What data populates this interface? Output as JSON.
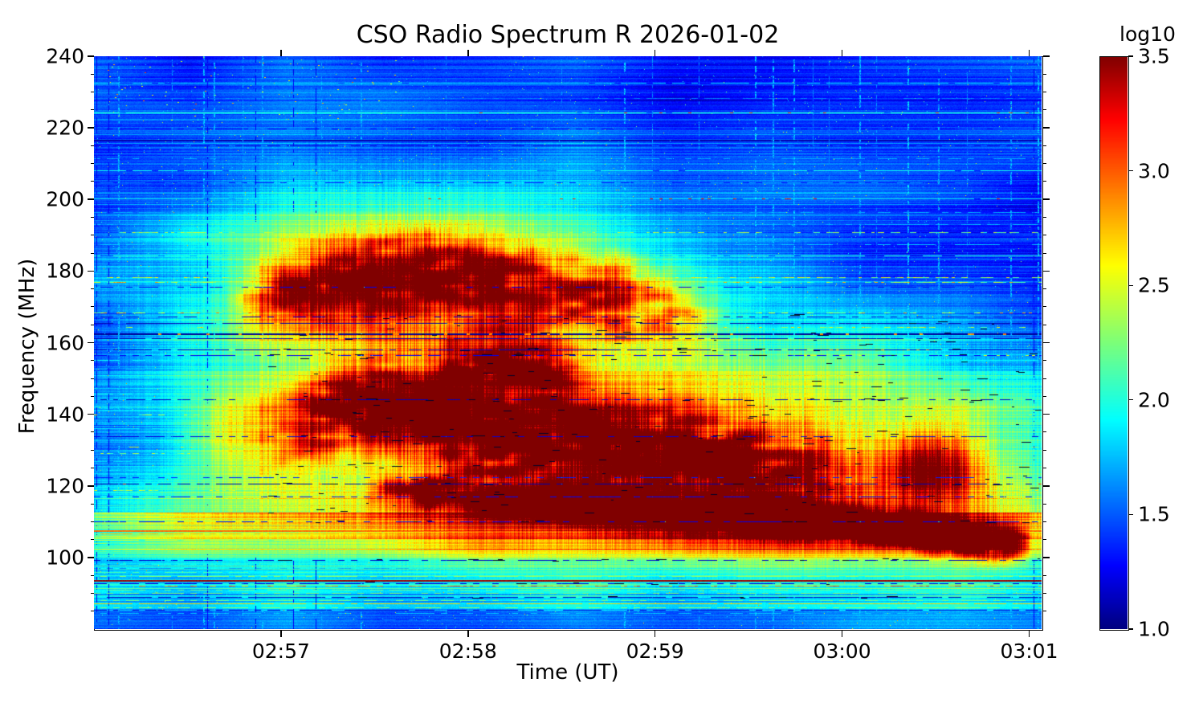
{
  "figure": {
    "background": "#ffffff"
  },
  "chart_data": {
    "type": "heatmap",
    "title": "CSO Radio Spectrum R 2026-01-02",
    "xlabel": "Time (UT)",
    "ylabel": "Frequency (MHz)",
    "colorbar_label": "log10",
    "value_range": [
      1.0,
      3.5
    ],
    "freq_range_mhz": [
      80,
      240
    ],
    "time_range": [
      "02:56:00",
      "03:01:04"
    ],
    "time_span_seconds": 304,
    "x_ticks": [
      {
        "label": "02:57",
        "t": 60
      },
      {
        "label": "02:58",
        "t": 120
      },
      {
        "label": "02:59",
        "t": 180
      },
      {
        "label": "03:00",
        "t": 240
      },
      {
        "label": "03:01",
        "t": 300
      }
    ],
    "y_ticks": [
      {
        "label": "240",
        "f": 240
      },
      {
        "label": "220",
        "f": 220
      },
      {
        "label": "200",
        "f": 200
      },
      {
        "label": "180",
        "f": 180
      },
      {
        "label": "160",
        "f": 160
      },
      {
        "label": "140",
        "f": 140
      },
      {
        "label": "120",
        "f": 120
      },
      {
        "label": "100",
        "f": 100
      }
    ],
    "y_minor_step": 5,
    "colorbar_ticks": [
      {
        "label": "3.5",
        "v": 3.5
      },
      {
        "label": "3.0",
        "v": 3.0
      },
      {
        "label": "2.5",
        "v": 2.5
      },
      {
        "label": "2.0",
        "v": 2.0
      },
      {
        "label": "1.5",
        "v": 1.5
      },
      {
        "label": "1.0",
        "v": 1.0
      }
    ],
    "colormap": {
      "name": "jet",
      "stops": [
        [
          0.0,
          [
            0,
            0,
            128
          ]
        ],
        [
          0.11,
          [
            0,
            0,
            255
          ]
        ],
        [
          0.365,
          [
            0,
            255,
            255
          ]
        ],
        [
          0.5,
          [
            124,
            255,
            121
          ]
        ],
        [
          0.635,
          [
            255,
            255,
            0
          ]
        ],
        [
          0.89,
          [
            255,
            0,
            0
          ]
        ],
        [
          1.0,
          [
            128,
            0,
            0
          ]
        ]
      ]
    },
    "seed": 1234,
    "background_level": 1.38,
    "texture": {
      "row_noise": 0.11,
      "col_noise": 0.16,
      "grain": 0.05,
      "patch": 0.6
    },
    "zones": [
      {
        "f0": 100,
        "f1": 112.5,
        "a": 0.5
      },
      {
        "f0": 85,
        "f1": 100,
        "a": 0.32
      },
      {
        "f0": 80,
        "f1": 85,
        "a": 0.12
      },
      {
        "f0": 137,
        "f1": 152,
        "a": 0.1
      },
      {
        "f0": 112.5,
        "f1": 122,
        "a": 0.06
      },
      {
        "f0": 186,
        "f1": 196,
        "a": 0.06
      }
    ],
    "envelope_blobs": [
      {
        "t": 95,
        "f": 168,
        "st": 52,
        "sf": 26,
        "amp": 0.72
      },
      {
        "t": 108,
        "f": 186,
        "st": 40,
        "sf": 13,
        "amp": 0.5
      },
      {
        "t": 140,
        "f": 150,
        "st": 70,
        "sf": 28,
        "amp": 0.55
      },
      {
        "t": 190,
        "f": 132,
        "st": 80,
        "sf": 20,
        "amp": 0.5
      },
      {
        "t": 255,
        "f": 131,
        "st": 60,
        "sf": 21,
        "amp": 0.55
      },
      {
        "t": 45,
        "f": 134,
        "st": 12,
        "sf": 9,
        "amp": 0.65
      },
      {
        "t": 180,
        "f": 112,
        "st": 115,
        "sf": 8,
        "amp": 0.95
      },
      {
        "t": 268,
        "f": 125,
        "st": 11,
        "sf": 6.5,
        "amp": 1.35
      },
      {
        "t": 104,
        "f": 138,
        "st": 9,
        "sf": 5,
        "amp": 0.4
      }
    ],
    "tracks": [
      {
        "name": "upper-band",
        "sf": 7.5,
        "amp": 1.05,
        "fade": [
          42,
          62,
          172,
          205
        ],
        "pts": [
          [
            50,
            171
          ],
          [
            68,
            175
          ],
          [
            90,
            178
          ],
          [
            112,
            179
          ],
          [
            132,
            177
          ],
          [
            152,
            174
          ],
          [
            172,
            172
          ],
          [
            190,
            170
          ]
        ]
      },
      {
        "name": "mid-band",
        "sf": 8,
        "amp": 1.55,
        "fade": [
          48,
          80,
          200,
          252
        ],
        "pts": [
          [
            55,
            134
          ],
          [
            75,
            139
          ],
          [
            90,
            142
          ],
          [
            104,
            140
          ],
          [
            115,
            136
          ],
          [
            135,
            132.5
          ],
          [
            155,
            131
          ],
          [
            176,
            129.5
          ],
          [
            195,
            128.5
          ],
          [
            213,
            126.5
          ],
          [
            232,
            125.5
          ],
          [
            250,
            124.5
          ]
        ]
      },
      {
        "name": "mid-upper-extension",
        "sf": 6,
        "amp": 1.1,
        "fade": [
          106,
          118,
          144,
          160
        ],
        "pts": [
          [
            112,
            152
          ],
          [
            125,
            155
          ],
          [
            140,
            154
          ],
          [
            150,
            151
          ]
        ]
      },
      {
        "name": "lower-lane",
        "sf": 3.2,
        "amp": 1.55,
        "fade": [
          86,
          106,
          292,
          301
        ],
        "late": {
          "from": 238,
          "to": 292,
          "amp": 0.5
        },
        "pts": [
          [
            100,
            118.5
          ],
          [
            125,
            116.5
          ],
          [
            150,
            114.5
          ],
          [
            176,
            113
          ],
          [
            200,
            111.8
          ],
          [
            226,
            110.3
          ],
          [
            247,
            109
          ],
          [
            262,
            107.5
          ],
          [
            278,
            105.5
          ],
          [
            292,
            104
          ]
        ]
      }
    ],
    "h_lines": [
      {
        "f": 232.6,
        "v": 1.85,
        "m": "b",
        "p": 0.85
      },
      {
        "f": 228.4,
        "v": 1.6,
        "m": "b",
        "p": 0.5
      },
      {
        "f": 224.2,
        "v": 2.0,
        "m": "b",
        "p": 0.9,
        "dv": 3.0,
        "dp": 0.05,
        "t0": 120
      },
      {
        "f": 219.8,
        "v": 1.25,
        "m": "d",
        "p": 0.6
      },
      {
        "f": 216.6,
        "v": 1.1,
        "m": "d",
        "w": 2
      },
      {
        "f": 215.2,
        "v": 1.2,
        "m": "d",
        "p": 0.7
      },
      {
        "f": 211.4,
        "v": 1.7,
        "m": "b",
        "p": 0.5
      },
      {
        "f": 208.2,
        "v": 1.95,
        "m": "b",
        "p": 0.92
      },
      {
        "f": 204.8,
        "v": 1.3,
        "m": "d",
        "p": 0.4
      },
      {
        "f": 200.3,
        "v": 1.95,
        "m": "b",
        "p": 0.9,
        "dv": 3.05,
        "dp": 0.07,
        "t0": 100
      },
      {
        "f": 196.4,
        "v": 1.7,
        "m": "b",
        "p": 0.5
      },
      {
        "f": 193.1,
        "v": 1.75,
        "m": "b",
        "p": 0.65
      },
      {
        "f": 190.9,
        "v": 2.0,
        "m": "s",
        "p": 0.3,
        "dv": 2.4,
        "dp": 0.12
      },
      {
        "f": 187.6,
        "v": 1.8,
        "m": "b",
        "p": 0.55
      },
      {
        "f": 184.3,
        "v": 2.0,
        "m": "b",
        "p": 0.8
      },
      {
        "f": 181.2,
        "v": 1.65,
        "m": "b",
        "p": 0.4
      },
      {
        "f": 178.4,
        "v": 2.1,
        "m": "s",
        "p": 0.35,
        "dv": 2.6,
        "dp": 0.1
      },
      {
        "f": 177.0,
        "v": 2.0,
        "m": "s",
        "p": 0.3,
        "dv": 2.8,
        "dp": 0.08
      },
      {
        "f": 175.5,
        "v": 1.25,
        "m": "d",
        "p": 0.5
      },
      {
        "f": 171.9,
        "v": 1.7,
        "m": "b",
        "p": 0.45
      },
      {
        "f": 168.5,
        "v": 2.1,
        "m": "s",
        "p": 0.3,
        "dv": 2.9,
        "dp": 0.1
      },
      {
        "f": 167.4,
        "v": 1.2,
        "m": "d",
        "p": 0.45
      },
      {
        "f": 165.4,
        "v": 1.1,
        "m": "d",
        "p": 0.8
      },
      {
        "f": 164.3,
        "v": 2.0,
        "m": "s",
        "p": 0.25,
        "dv": 2.7,
        "dp": 0.1
      },
      {
        "f": 162.5,
        "v": 1.05,
        "m": "d",
        "w": 2,
        "dv": 2.9,
        "dp": 0.1
      },
      {
        "f": 161.2,
        "v": 1.12,
        "m": "d",
        "p": 0.85
      },
      {
        "f": 158.2,
        "v": 1.15,
        "m": "d",
        "p": 0.8,
        "dv": 3.0,
        "dp": 0.12,
        "t0": 215
      },
      {
        "f": 156.6,
        "v": 1.25,
        "m": "d",
        "p": 0.6,
        "dv": 2.5,
        "dp": 0.14,
        "t0": 225
      },
      {
        "f": 155.1,
        "v": 1.9,
        "m": "b",
        "p": 0.7
      },
      {
        "f": 152.7,
        "v": 1.75,
        "m": "b",
        "p": 0.5
      },
      {
        "f": 150.4,
        "v": 1.9,
        "m": "b",
        "p": 0.75
      },
      {
        "f": 147.9,
        "v": 1.7,
        "m": "b",
        "p": 0.45
      },
      {
        "f": 145.7,
        "v": 1.95,
        "m": "b",
        "p": 0.7
      },
      {
        "f": 144.2,
        "v": 1.15,
        "m": "d",
        "p": 0.55
      },
      {
        "f": 141.8,
        "v": 1.8,
        "m": "b",
        "p": 0.5
      },
      {
        "f": 139.9,
        "v": 2.0,
        "m": "s",
        "p": 0.3,
        "dv": 2.6,
        "dp": 0.08
      },
      {
        "f": 136.2,
        "v": 1.9,
        "m": "b",
        "p": 0.55
      },
      {
        "f": 133.9,
        "v": 1.2,
        "m": "d",
        "p": 0.5
      },
      {
        "f": 131.0,
        "v": 2.0,
        "m": "s",
        "p": 0.3,
        "dv": 2.5,
        "dp": 0.08
      },
      {
        "f": 129.2,
        "v": 2.0,
        "m": "s",
        "p": 0.35,
        "dv": 2.4,
        "dp": 0.08
      },
      {
        "f": 126.9,
        "v": 1.8,
        "m": "b",
        "p": 0.45
      },
      {
        "f": 124.5,
        "v": 1.85,
        "m": "b",
        "p": 0.5
      },
      {
        "f": 122.4,
        "v": 1.35,
        "m": "d",
        "p": 0.4
      },
      {
        "f": 120.6,
        "v": 1.1,
        "m": "d",
        "p": 0.75,
        "dv": 3.1,
        "dp": 0.05
      },
      {
        "f": 118.8,
        "v": 2.05,
        "m": "s",
        "p": 0.3,
        "dv": 2.5,
        "dp": 0.08
      },
      {
        "f": 117.0,
        "v": 1.3,
        "m": "d",
        "p": 0.45
      },
      {
        "f": 115.2,
        "v": 1.95,
        "m": "b",
        "p": 0.5
      },
      {
        "f": 113.5,
        "v": 2.0,
        "m": "s",
        "p": 0.3
      },
      {
        "f": 111.8,
        "v": 2.1,
        "m": "b",
        "p": 0.6
      },
      {
        "f": 110.1,
        "v": 1.25,
        "m": "d",
        "p": 0.5
      },
      {
        "f": 108.8,
        "v": 2.25,
        "m": "b",
        "p": 0.7
      },
      {
        "f": 107.6,
        "v": 2.95,
        "m": "b",
        "w": 2
      },
      {
        "f": 106.8,
        "v": 2.75,
        "m": "b",
        "p": 0.85
      },
      {
        "f": 106.0,
        "v": 2.5,
        "m": "b",
        "p": 0.9
      },
      {
        "f": 104.9,
        "v": 2.45,
        "m": "b",
        "p": 0.8
      },
      {
        "f": 104.0,
        "v": 2.3,
        "m": "b",
        "p": 0.8
      },
      {
        "f": 102.8,
        "v": 2.15,
        "m": "b",
        "p": 0.7
      },
      {
        "f": 101.7,
        "v": 2.2,
        "m": "b",
        "p": 0.6
      },
      {
        "f": 100.6,
        "v": 2.0,
        "m": "b",
        "p": 0.6
      },
      {
        "f": 99.4,
        "v": 1.15,
        "m": "d",
        "p": 0.6
      },
      {
        "f": 98.2,
        "v": 1.95,
        "m": "b",
        "p": 0.6
      },
      {
        "f": 97.0,
        "v": 1.9,
        "m": "b",
        "p": 0.55
      },
      {
        "f": 95.9,
        "v": 2.1,
        "m": "b",
        "p": 0.6
      },
      {
        "f": 94.8,
        "v": 2.3,
        "m": "b",
        "p": 0.7
      },
      {
        "f": 93.6,
        "v": 3.45,
        "m": "b",
        "w": 2
      },
      {
        "f": 92.9,
        "v": 1.2,
        "m": "d",
        "p": 0.6
      },
      {
        "f": 92.2,
        "v": 2.55,
        "m": "s",
        "p": 0.5,
        "dv": 1.15,
        "dp": 0.25
      },
      {
        "f": 91.0,
        "v": 2.2,
        "m": "b",
        "p": 0.6
      },
      {
        "f": 90.1,
        "v": 2.25,
        "m": "b",
        "p": 0.55
      },
      {
        "f": 89.0,
        "v": 1.12,
        "m": "d",
        "p": 0.8
      },
      {
        "f": 88.0,
        "v": 2.2,
        "m": "b",
        "p": 0.5
      },
      {
        "f": 87.1,
        "v": 2.7,
        "m": "b",
        "p": 0.9
      },
      {
        "f": 86.1,
        "v": 2.3,
        "m": "b",
        "p": 0.6
      },
      {
        "f": 85.3,
        "v": 1.2,
        "m": "d",
        "p": 0.7
      },
      {
        "f": 84.4,
        "v": 1.75,
        "m": "b",
        "p": 0.5
      },
      {
        "f": 82.8,
        "v": 1.6,
        "m": "b",
        "p": 0.4
      }
    ],
    "v_streaks": [
      {
        "t": 0.8,
        "m": "d",
        "a": 0.3
      },
      {
        "t": 4.6,
        "m": "d",
        "a": 0.35
      },
      {
        "t": 7.7,
        "m": "c",
        "a": 0.45
      },
      {
        "t": 25,
        "m": "c",
        "a": 0.35
      },
      {
        "t": 35,
        "m": "c",
        "a": 0.5
      },
      {
        "t": 36.3,
        "m": "d",
        "a": 0.3
      },
      {
        "t": 38.4,
        "m": "c",
        "a": 0.45
      },
      {
        "t": 47.7,
        "m": "c",
        "a": 0.4
      },
      {
        "t": 51.8,
        "m": "d",
        "a": 0.4
      },
      {
        "t": 53.8,
        "m": "c",
        "a": 0.45
      },
      {
        "t": 64,
        "m": "d",
        "a": 0.3
      },
      {
        "t": 71,
        "m": "d",
        "a": 0.35
      },
      {
        "t": 73,
        "m": "c",
        "a": 0.4
      },
      {
        "t": 85.5,
        "m": "c",
        "a": 0.45
      },
      {
        "t": 112.8,
        "m": "c",
        "a": 0.35
      },
      {
        "t": 150,
        "m": "c",
        "a": 0.35
      },
      {
        "t": 170,
        "m": "c",
        "a": 0.55
      },
      {
        "t": 179,
        "m": "c",
        "a": 0.3
      },
      {
        "t": 194,
        "m": "c",
        "a": 0.4
      },
      {
        "t": 212,
        "m": "c",
        "a": 0.55
      },
      {
        "t": 217.6,
        "m": "c",
        "a": 0.45
      },
      {
        "t": 224.4,
        "m": "c",
        "a": 0.5
      },
      {
        "t": 230.5,
        "m": "c",
        "a": 0.3
      },
      {
        "t": 235.7,
        "m": "c",
        "a": 0.3
      },
      {
        "t": 245.5,
        "m": "c",
        "a": 0.45
      },
      {
        "t": 251,
        "m": "c",
        "a": 0.3
      },
      {
        "t": 261,
        "m": "c",
        "a": 0.55
      },
      {
        "t": 270.7,
        "m": "c",
        "a": 0.45
      },
      {
        "t": 280,
        "m": "c",
        "a": 0.3
      },
      {
        "t": 293.9,
        "m": "c",
        "a": 0.45
      },
      {
        "t": 301.5,
        "m": "d",
        "a": 0.35
      },
      {
        "t": 302.8,
        "m": "c",
        "a": 0.5
      }
    ],
    "dropout_dashes": {
      "count": 320,
      "f_zone": [
        112,
        168
      ],
      "t_zone": [
        55,
        303
      ],
      "line_freqs": [
        162.5,
        156.6,
        158.2,
        133.9,
        120.6,
        110.1,
        99.4,
        92.9,
        89.0,
        144.2
      ]
    }
  }
}
